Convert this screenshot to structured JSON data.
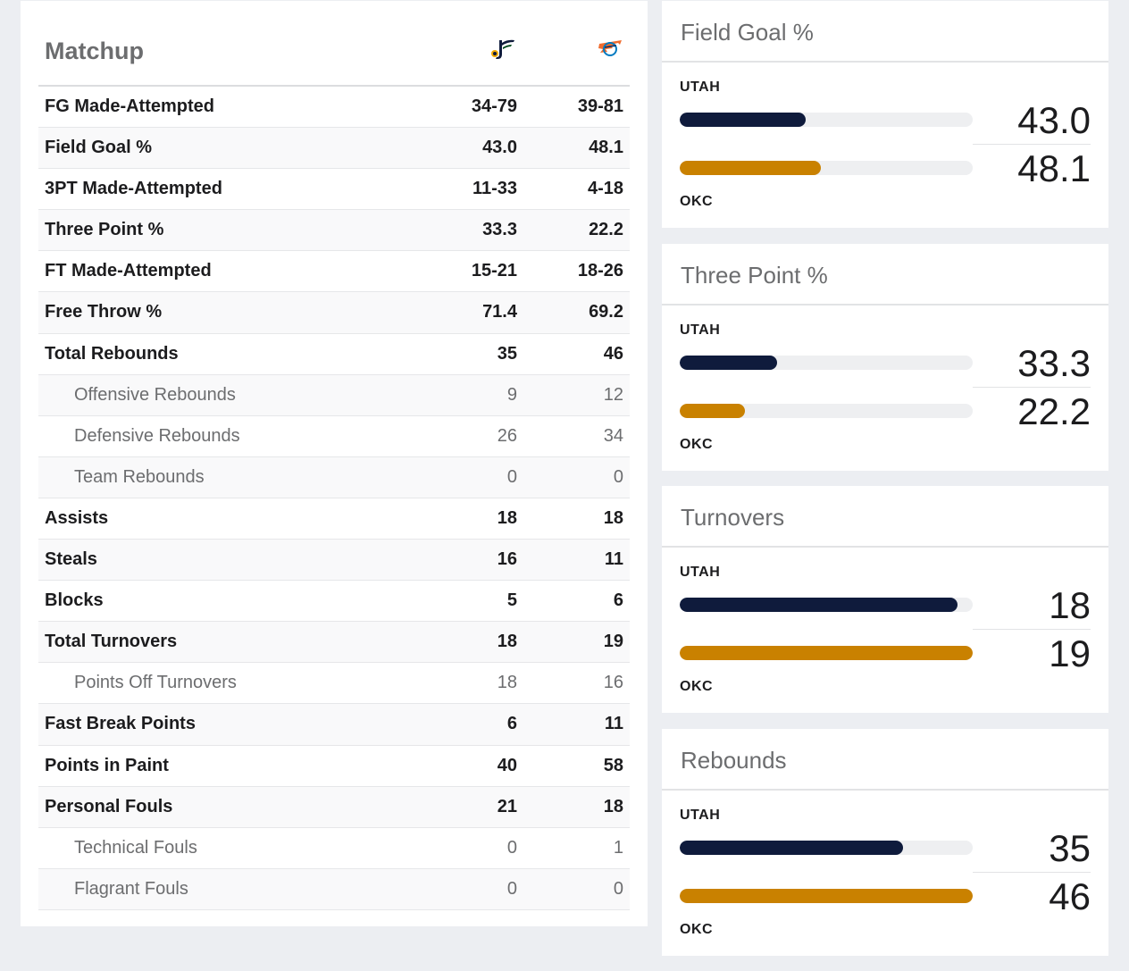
{
  "matchup": {
    "title": "Matchup",
    "teams": [
      {
        "abbr": "UTAH",
        "logo": "utah-jazz-logo-icon",
        "color": "#0f1b3c"
      },
      {
        "abbr": "OKC",
        "logo": "okc-thunder-logo-icon",
        "color": "#c98100"
      }
    ],
    "rows": [
      {
        "label": "FG Made-Attempted",
        "utah": "34-79",
        "okc": "39-81",
        "sub": false
      },
      {
        "label": "Field Goal %",
        "utah": "43.0",
        "okc": "48.1",
        "sub": false
      },
      {
        "label": "3PT Made-Attempted",
        "utah": "11-33",
        "okc": "4-18",
        "sub": false
      },
      {
        "label": "Three Point %",
        "utah": "33.3",
        "okc": "22.2",
        "sub": false
      },
      {
        "label": "FT Made-Attempted",
        "utah": "15-21",
        "okc": "18-26",
        "sub": false
      },
      {
        "label": "Free Throw %",
        "utah": "71.4",
        "okc": "69.2",
        "sub": false
      },
      {
        "label": "Total Rebounds",
        "utah": "35",
        "okc": "46",
        "sub": false
      },
      {
        "label": "Offensive Rebounds",
        "utah": "9",
        "okc": "12",
        "sub": true
      },
      {
        "label": "Defensive Rebounds",
        "utah": "26",
        "okc": "34",
        "sub": true
      },
      {
        "label": "Team Rebounds",
        "utah": "0",
        "okc": "0",
        "sub": true
      },
      {
        "label": "Assists",
        "utah": "18",
        "okc": "18",
        "sub": false
      },
      {
        "label": "Steals",
        "utah": "16",
        "okc": "11",
        "sub": false
      },
      {
        "label": "Blocks",
        "utah": "5",
        "okc": "6",
        "sub": false
      },
      {
        "label": "Total Turnovers",
        "utah": "18",
        "okc": "19",
        "sub": false
      },
      {
        "label": "Points Off Turnovers",
        "utah": "18",
        "okc": "16",
        "sub": true
      },
      {
        "label": "Fast Break Points",
        "utah": "6",
        "okc": "11",
        "sub": false
      },
      {
        "label": "Points in Paint",
        "utah": "40",
        "okc": "58",
        "sub": false
      },
      {
        "label": "Personal Fouls",
        "utah": "21",
        "okc": "18",
        "sub": false
      },
      {
        "label": "Technical Fouls",
        "utah": "0",
        "okc": "1",
        "sub": true
      },
      {
        "label": "Flagrant Fouls",
        "utah": "0",
        "okc": "0",
        "sub": true
      }
    ]
  },
  "cards": [
    {
      "title": "Field Goal %",
      "team_top": "UTAH",
      "team_bottom": "OKC",
      "utah": "43.0",
      "okc": "48.1",
      "utah_fill": 0.43,
      "okc_fill": 0.481
    },
    {
      "title": "Three Point %",
      "team_top": "UTAH",
      "team_bottom": "OKC",
      "utah": "33.3",
      "okc": "22.2",
      "utah_fill": 0.333,
      "okc_fill": 0.222
    },
    {
      "title": "Turnovers",
      "team_top": "UTAH",
      "team_bottom": "OKC",
      "utah": "18",
      "okc": "19",
      "utah_fill": 0.947,
      "okc_fill": 1.0
    },
    {
      "title": "Rebounds",
      "team_top": "UTAH",
      "team_bottom": "OKC",
      "utah": "35",
      "okc": "46",
      "utah_fill": 0.761,
      "okc_fill": 1.0
    }
  ]
}
